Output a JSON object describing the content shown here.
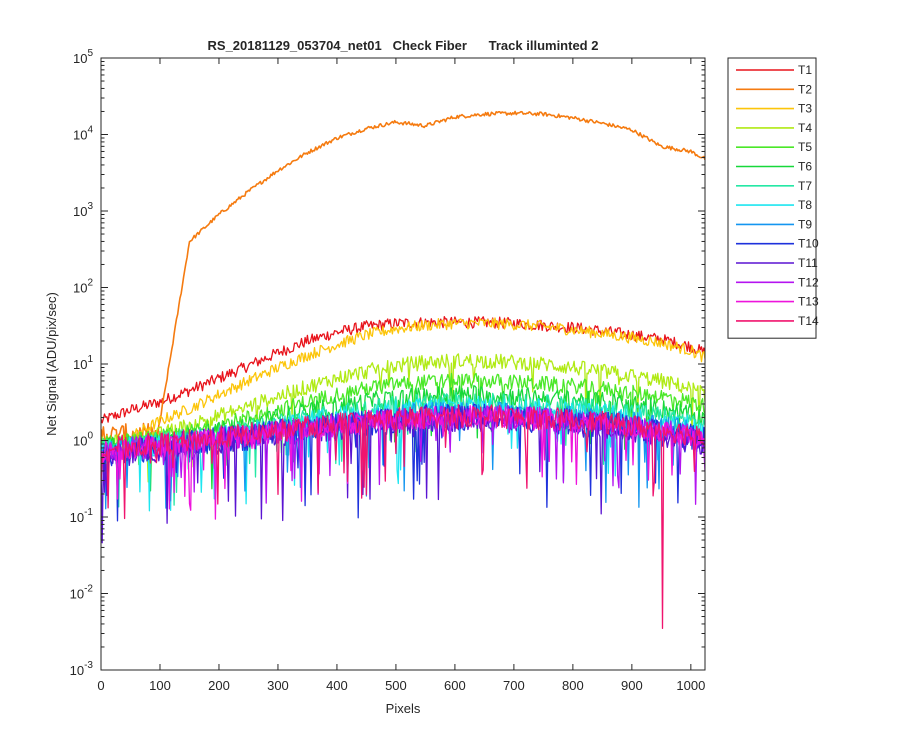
{
  "chart_data": {
    "type": "line",
    "title": "RS_20181129_053704_net01   Check Fiber      Track illuminted 2",
    "xlabel": "Pixels",
    "ylabel": "Net Signal (ADU/pix/sec)",
    "xlim": [
      0,
      1024
    ],
    "ylim": [
      0.001,
      100000
    ],
    "yscale": "log",
    "grid": false,
    "legend_position": "outside-top-right",
    "x_ticks": [
      0,
      100,
      200,
      300,
      400,
      500,
      600,
      700,
      800,
      900,
      1000
    ],
    "y_ticks": [
      {
        "value": 0.001,
        "base": "10",
        "exp": "-3"
      },
      {
        "value": 0.01,
        "base": "10",
        "exp": "-2"
      },
      {
        "value": 0.1,
        "base": "10",
        "exp": "-1"
      },
      {
        "value": 1,
        "base": "10",
        "exp": "0"
      },
      {
        "value": 10,
        "base": "10",
        "exp": "1"
      },
      {
        "value": 100,
        "base": "10",
        "exp": "2"
      },
      {
        "value": 1000,
        "base": "10",
        "exp": "3"
      },
      {
        "value": 10000,
        "base": "10",
        "exp": "4"
      },
      {
        "value": 100000,
        "base": "10",
        "exp": "5"
      }
    ],
    "x": [
      0,
      50,
      100,
      150,
      200,
      250,
      300,
      350,
      400,
      450,
      500,
      550,
      600,
      650,
      700,
      750,
      800,
      850,
      900,
      950,
      1000,
      1024
    ],
    "series": [
      {
        "name": "T1",
        "color": "#e8141c",
        "noise": 0.3,
        "values": [
          1.8,
          2.5,
          3.2,
          4.5,
          6.5,
          9.5,
          14,
          20,
          26,
          31,
          34,
          35,
          35,
          35,
          34,
          32,
          30,
          27,
          24,
          21,
          17,
          14
        ]
      },
      {
        "name": "T2",
        "color": "#f57b10",
        "noise": 0.1,
        "values": [
          0.9,
          1.2,
          1.8,
          400,
          900,
          1800,
          3400,
          5800,
          9000,
          12000,
          14500,
          13000,
          17000,
          18500,
          19000,
          18500,
          16500,
          14000,
          11500,
          7000,
          6000,
          4800
        ]
      },
      {
        "name": "T3",
        "color": "#fcc50a",
        "noise": 0.3,
        "values": [
          0.6,
          1.1,
          1.8,
          2.6,
          4,
          6,
          9,
          13,
          18,
          24,
          29,
          32,
          34,
          34,
          33,
          31,
          28,
          25,
          22,
          19,
          15,
          12
        ]
      },
      {
        "name": "T4",
        "color": "#b0ea14",
        "noise": 0.4,
        "values": [
          0.9,
          1.0,
          1.2,
          1.6,
          2.1,
          2.8,
          3.8,
          5,
          6.5,
          8,
          9.5,
          10.5,
          11,
          11,
          10.5,
          10,
          9,
          8,
          7,
          6,
          4.8,
          4
        ]
      },
      {
        "name": "T5",
        "color": "#4ae828",
        "noise": 0.4,
        "values": [
          0.9,
          1.0,
          1.1,
          1.3,
          1.6,
          2,
          2.5,
          3.2,
          4,
          4.8,
          5.5,
          5.8,
          6,
          6,
          5.8,
          5.5,
          5.2,
          4.8,
          4.2,
          3.8,
          3.2,
          2.8
        ]
      },
      {
        "name": "T6",
        "color": "#17d83a",
        "noise": 0.5,
        "values": [
          0.8,
          0.9,
          1.0,
          1.1,
          1.3,
          1.6,
          2,
          2.4,
          2.8,
          3.2,
          3.6,
          3.8,
          4,
          4,
          3.8,
          3.6,
          3.4,
          3.2,
          3,
          2.6,
          2.2,
          2
        ]
      },
      {
        "name": "T7",
        "color": "#25e8a5",
        "noise": 0.5,
        "values": [
          0.8,
          0.9,
          1.0,
          1.1,
          1.2,
          1.4,
          1.7,
          2,
          2.3,
          2.6,
          2.9,
          3.1,
          3.2,
          3.2,
          3.1,
          3,
          2.8,
          2.6,
          2.4,
          2.1,
          1.8,
          1.6
        ]
      },
      {
        "name": "T8",
        "color": "#1ee6f0",
        "noise": 0.6,
        "values": [
          0.7,
          0.8,
          0.9,
          1.0,
          1.1,
          1.3,
          1.5,
          1.7,
          2,
          2.2,
          2.4,
          2.6,
          2.7,
          2.7,
          2.6,
          2.5,
          2.3,
          2.2,
          2,
          1.8,
          1.5,
          1.3
        ]
      },
      {
        "name": "T9",
        "color": "#1496f0",
        "noise": 0.6,
        "values": [
          0.7,
          0.8,
          0.9,
          0.95,
          1.05,
          1.2,
          1.35,
          1.5,
          1.7,
          1.9,
          2.1,
          2.2,
          2.3,
          2.3,
          2.2,
          2.1,
          2,
          1.9,
          1.7,
          1.5,
          1.3,
          1.1
        ]
      },
      {
        "name": "T10",
        "color": "#1e32dc",
        "noise": 0.7,
        "values": [
          0.6,
          0.7,
          0.8,
          0.9,
          1.0,
          1.1,
          1.25,
          1.4,
          1.55,
          1.7,
          1.85,
          1.95,
          2,
          2,
          1.95,
          1.85,
          1.75,
          1.6,
          1.45,
          1.3,
          1.1,
          1
        ]
      },
      {
        "name": "T11",
        "color": "#5a14d2",
        "noise": 0.7,
        "values": [
          0.6,
          0.7,
          0.8,
          0.9,
          1.0,
          1.1,
          1.2,
          1.35,
          1.5,
          1.65,
          1.8,
          1.9,
          1.95,
          1.95,
          1.9,
          1.8,
          1.7,
          1.55,
          1.4,
          1.25,
          1.05,
          0.95
        ]
      },
      {
        "name": "T12",
        "color": "#b414f0",
        "noise": 0.6,
        "values": [
          0.7,
          0.8,
          0.85,
          0.95,
          1.05,
          1.15,
          1.3,
          1.45,
          1.6,
          1.75,
          1.9,
          2,
          2.05,
          2.05,
          2,
          1.9,
          1.8,
          1.65,
          1.5,
          1.35,
          1.15,
          1
        ]
      },
      {
        "name": "T13",
        "color": "#ee14dc",
        "noise": 0.6,
        "values": [
          0.7,
          0.8,
          0.85,
          0.95,
          1.05,
          1.15,
          1.3,
          1.45,
          1.6,
          1.75,
          1.9,
          2,
          2.05,
          2.05,
          2,
          1.9,
          1.8,
          1.65,
          1.5,
          1.35,
          1.15,
          1
        ]
      },
      {
        "name": "T14",
        "color": "#f0146e",
        "noise": 0.6,
        "values": [
          0.8,
          0.85,
          0.9,
          1.0,
          1.1,
          1.2,
          1.35,
          1.5,
          1.65,
          1.8,
          1.95,
          2,
          2.1,
          2.1,
          2,
          1.95,
          1.85,
          1.7,
          1.55,
          1.4,
          1.2,
          1.05
        ]
      }
    ]
  }
}
